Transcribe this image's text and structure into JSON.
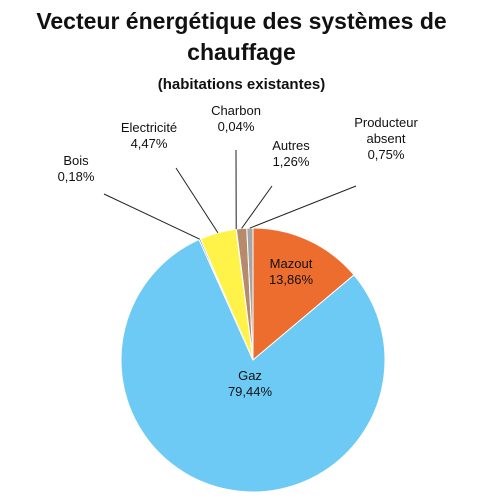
{
  "chart_data": {
    "type": "pie",
    "title": "Vecteur énergétique des systèmes de chauffage",
    "subtitle": "(habitations existantes)",
    "categories": [
      "Mazout",
      "Gaz",
      "Bois",
      "Electricité",
      "Charbon",
      "Autres",
      "Producteur absent"
    ],
    "values": [
      13.86,
      79.44,
      0.18,
      4.47,
      0.04,
      1.26,
      0.75
    ],
    "value_labels": [
      "13,86%",
      "79,44%",
      "0,18%",
      "4,47%",
      "0,04%",
      "1,26%",
      "0,75%"
    ],
    "colors": [
      "#ed6d2f",
      "#6dcaf5",
      "#4472c4",
      "#fff34a",
      "#404040",
      "#b58b6c",
      "#a5a5a5"
    ]
  }
}
